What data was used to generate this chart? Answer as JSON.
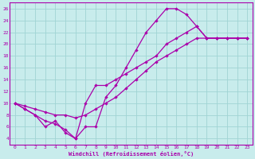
{
  "xlabel": "Windchill (Refroidissement éolien,°C)",
  "bg_color": "#c8ecec",
  "grid_color": "#a0d4d4",
  "line_color": "#aa00aa",
  "markersize": 2.2,
  "linewidth": 0.9,
  "xmin": -0.5,
  "xmax": 23.5,
  "ymin": 3,
  "ymax": 27,
  "yticks": [
    4,
    6,
    8,
    10,
    12,
    14,
    16,
    18,
    20,
    22,
    24,
    26
  ],
  "xticks": [
    0,
    1,
    2,
    3,
    4,
    5,
    6,
    7,
    8,
    9,
    10,
    11,
    12,
    13,
    14,
    15,
    16,
    17,
    18,
    19,
    20,
    21,
    22,
    23
  ],
  "series1": {
    "x": [
      0,
      1,
      2,
      3,
      4,
      5,
      6,
      7,
      8,
      9,
      10,
      11,
      12,
      13,
      14,
      15,
      16,
      17,
      18,
      19,
      20,
      21,
      22,
      23
    ],
    "y": [
      10,
      9,
      8,
      7,
      6.5,
      5.5,
      4,
      6,
      6,
      11,
      13,
      16,
      19,
      22,
      24,
      26,
      26,
      25,
      23,
      21,
      21,
      21,
      21,
      21
    ]
  },
  "series2": {
    "x": [
      0,
      1,
      2,
      3,
      4,
      5,
      6,
      7,
      8,
      9,
      10,
      11,
      12,
      13,
      14,
      15,
      16,
      17,
      18,
      19,
      20,
      21,
      22,
      23
    ],
    "y": [
      10,
      9,
      8,
      6,
      7,
      5,
      4,
      10,
      13,
      13,
      14,
      15,
      16,
      17,
      18,
      20,
      21,
      22,
      23,
      21,
      21,
      21,
      21,
      21
    ]
  },
  "series3": {
    "x": [
      0,
      1,
      2,
      3,
      4,
      5,
      6,
      7,
      8,
      9,
      10,
      11,
      12,
      13,
      14,
      15,
      16,
      17,
      18,
      19,
      20,
      21,
      22,
      23
    ],
    "y": [
      10,
      9.5,
      9,
      8.5,
      8,
      8,
      7.5,
      8,
      9,
      10,
      11,
      12.5,
      14,
      15.5,
      17,
      18,
      19,
      20,
      21,
      21,
      21,
      21,
      21,
      21
    ]
  }
}
